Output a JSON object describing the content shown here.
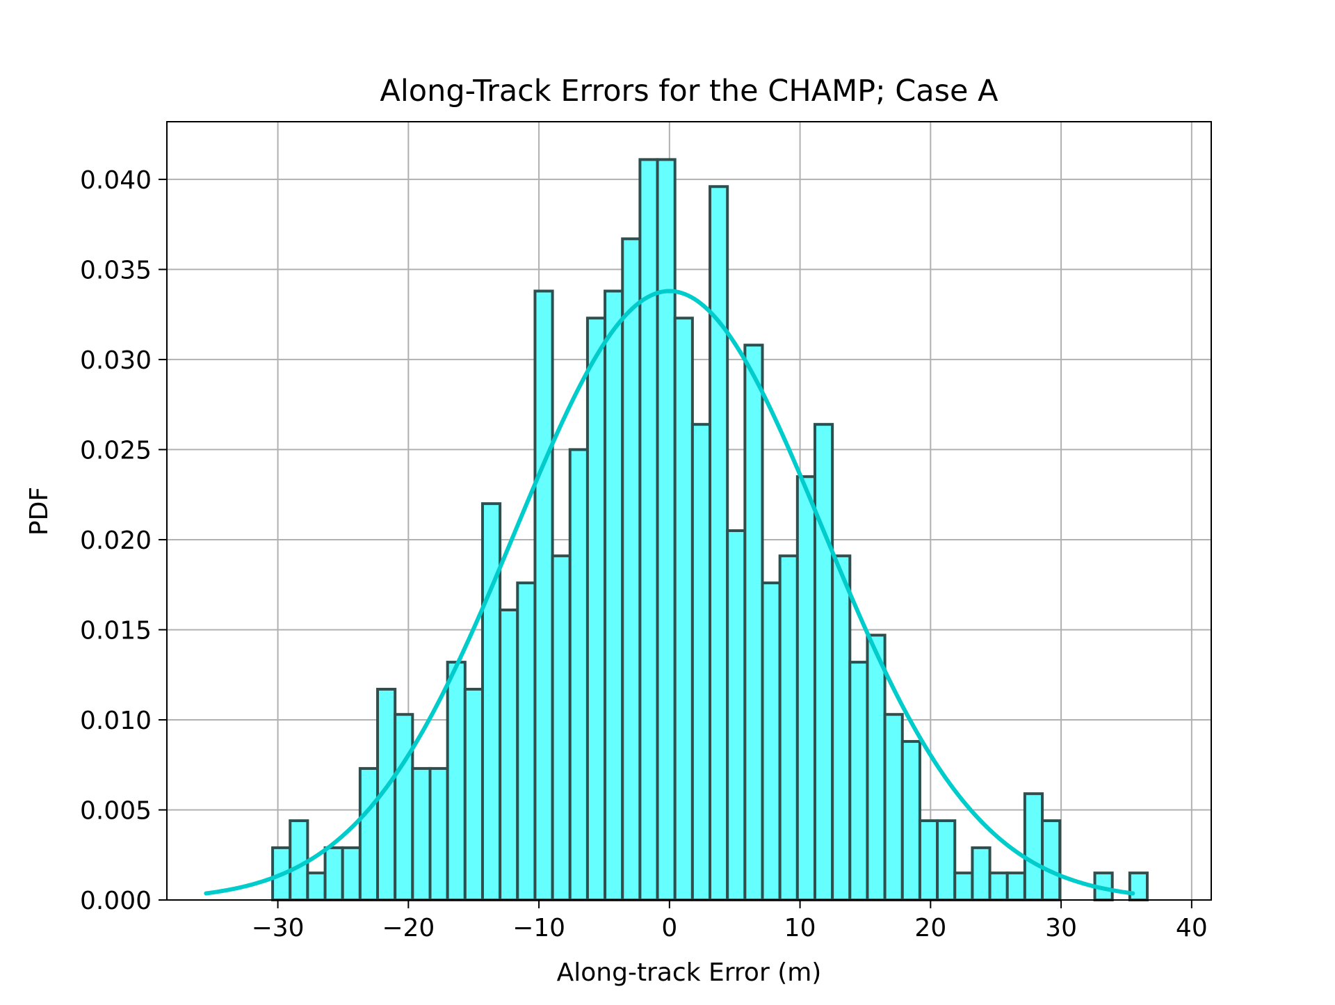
{
  "chart_data": {
    "type": "bar",
    "title": "Along-Track Errors for the CHAMP; Case A",
    "xlabel": "Along-track Error (m)",
    "ylabel": "PDF",
    "xlim": [
      -38.5,
      41.5
    ],
    "ylim": [
      0,
      0.0432
    ],
    "xticks": [
      -30,
      -20,
      -10,
      0,
      10,
      20,
      30,
      40
    ],
    "xtick_labels": [
      "−30",
      "−20",
      "−10",
      "0",
      "10",
      "20",
      "30",
      "40"
    ],
    "yticks": [
      0,
      0.005,
      0.01,
      0.015,
      0.02,
      0.025,
      0.03,
      0.035,
      0.04
    ],
    "ytick_labels": [
      "0.000",
      "0.005",
      "0.010",
      "0.015",
      "0.020",
      "0.025",
      "0.030",
      "0.035",
      "0.040"
    ],
    "grid": true,
    "histogram": {
      "bin_start": -30.4,
      "bin_width": 1.34,
      "values": [
        0.0029,
        0.0044,
        0.0015,
        0.0029,
        0.0029,
        0.0073,
        0.0117,
        0.0103,
        0.0073,
        0.0073,
        0.0132,
        0.0117,
        0.022,
        0.0161,
        0.0176,
        0.0338,
        0.0191,
        0.025,
        0.0323,
        0.0338,
        0.0367,
        0.0411,
        0.0411,
        0.0323,
        0.0264,
        0.0396,
        0.0205,
        0.0308,
        0.0176,
        0.0191,
        0.0235,
        0.0264,
        0.0191,
        0.0132,
        0.0147,
        0.0103,
        0.0088,
        0.0044,
        0.0044,
        0.0015,
        0.0029,
        0.0015,
        0.0015,
        0.0059,
        0.0044,
        0,
        0,
        0.0015,
        0,
        0.0015
      ],
      "fill_color": "#66ffff",
      "edge_color": "#2f4f4f"
    },
    "series": [
      {
        "type": "line",
        "mean": 0.0,
        "std": 11.8,
        "peak": 0.0338,
        "x_range": [
          -35.5,
          35.5
        ],
        "color": "#00cccc"
      }
    ]
  }
}
